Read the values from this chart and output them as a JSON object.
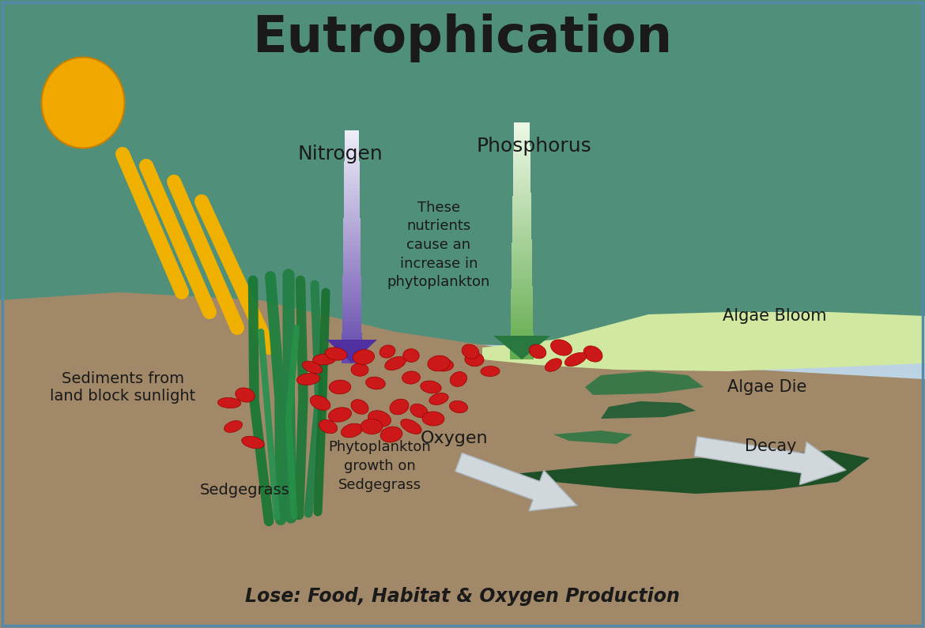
{
  "title": "Eutrophication",
  "nitrogen_label": "Nitrogen",
  "phosphorus_label": "Phosphorus",
  "nutrients_note": "These\nnutrients\ncause an\nincrease in\nphytoplankton",
  "sediments_label": "Sediments from\nland block sunlight",
  "sedgegrass_label": "Sedgegrass",
  "phyto_label": "Phytoplankton\ngrowth on\nSedgegrass",
  "oxygen_label": "Oxygen",
  "algae_bloom_label": "Algae Bloom",
  "algae_die_label": "Algae Die",
  "decay_label": "Decay",
  "bottom_label": "Lose: Food, Habitat & Oxygen Production",
  "sky_top": "#aac8de",
  "sky_bottom": "#c8dce8",
  "sediment_color": "#a08868",
  "water_color": "#50907a",
  "water_left_color": "#5aa088",
  "algae_bloom_color": "#d0e8a0",
  "algae_die_color1": "#3a7848",
  "algae_die_color2": "#2a6038",
  "algae_decay_color": "#1e5028",
  "grass_color1": "#1e8040",
  "grass_color2": "#28a050",
  "sun_color": "#f0a800",
  "ray_color": "#f0b000",
  "phyto_color": "#cc1818",
  "nit_arrow_top": "#e8e8f0",
  "nit_arrow_bot": "#6040a8",
  "phos_arrow_top": "#e8f0e0",
  "phos_arrow_bot": "#40a050",
  "oxy_arrow_color": "#d0d8dc",
  "text_dark": "#1a1a1a",
  "text_mid": "#2a2a2a"
}
